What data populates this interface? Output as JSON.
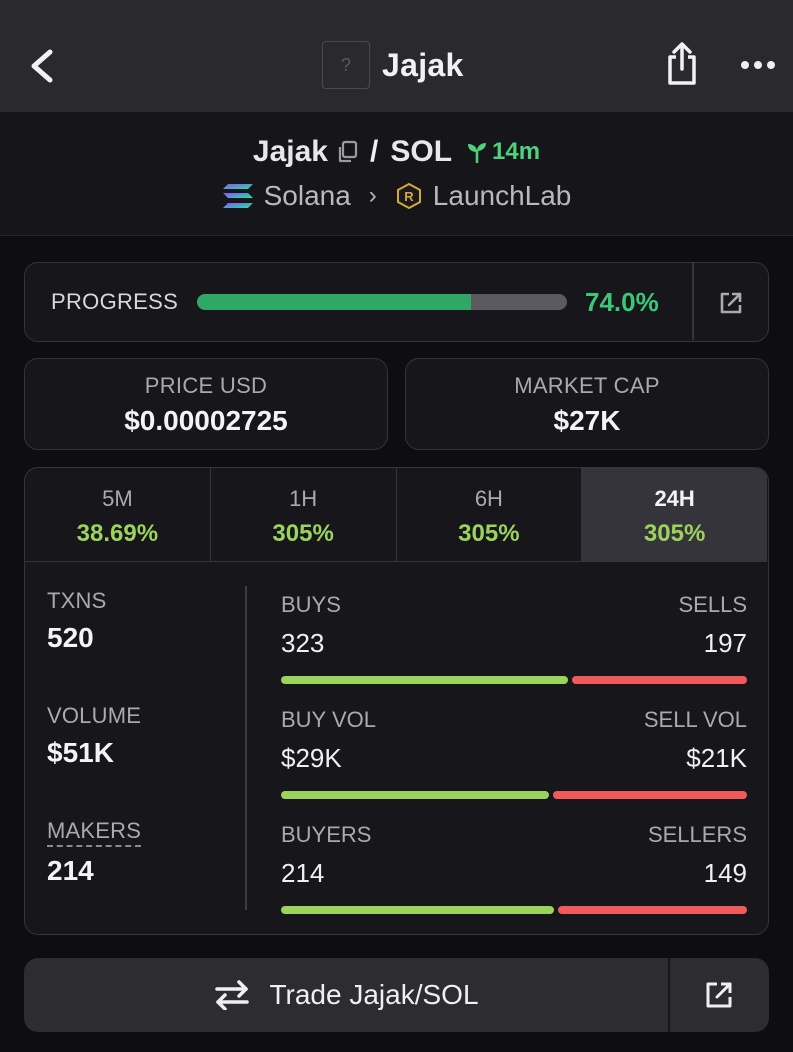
{
  "topbar": {
    "title": "Jajak",
    "token_placeholder": "?",
    "back_icon": "chevron-left-icon",
    "share_icon": "share-icon",
    "more_icon": "more-horizontal-icon"
  },
  "pair": {
    "base": "Jajak",
    "separator": "/",
    "quote": "SOL",
    "age": "14m",
    "chain": "Solana",
    "launchpad": "LaunchLab"
  },
  "progress": {
    "label": "PROGRESS",
    "value_text": "74.0%",
    "fraction": 0.74
  },
  "price": {
    "label": "PRICE USD",
    "value": "$0.00002725"
  },
  "market_cap": {
    "label": "MARKET CAP",
    "value": "$27K"
  },
  "tabs": [
    {
      "label": "5M",
      "change": "38.69%"
    },
    {
      "label": "1H",
      "change": "305%"
    },
    {
      "label": "6H",
      "change": "305%"
    },
    {
      "label": "24H",
      "change": "305%"
    }
  ],
  "active_tab": "24H",
  "stats": {
    "txns": {
      "label": "TXNS",
      "value": "520"
    },
    "volume": {
      "label": "VOLUME",
      "value": "$51K"
    },
    "makers": {
      "label": "MAKERS",
      "value": "214"
    }
  },
  "splits": {
    "txns": {
      "left_label": "BUYS",
      "right_label": "SELLS",
      "left_value": "323",
      "right_value": "197",
      "left_share": 0.621
    },
    "volume": {
      "left_label": "BUY VOL",
      "right_label": "SELL VOL",
      "left_value": "$29K",
      "right_value": "$21K",
      "left_share": 0.58
    },
    "makers": {
      "left_label": "BUYERS",
      "right_label": "SELLERS",
      "left_value": "214",
      "right_value": "149",
      "left_share": 0.59
    }
  },
  "trade": {
    "label": "Trade Jajak/SOL"
  },
  "colors": {
    "accent_green": "#3ac878",
    "change_green": "#9bd45c",
    "sell_red": "#f05a5a",
    "progress_fill": "#2fa866"
  }
}
